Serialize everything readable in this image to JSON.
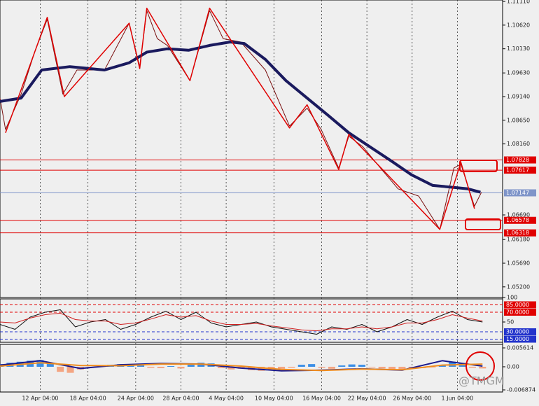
{
  "watermark": "@TMGM",
  "chart_data": [
    {
      "type": "line",
      "xlim": [
        0,
        100
      ],
      "xticks": [
        {
          "value": 8,
          "label": "12 Apr 04:00"
        },
        {
          "value": 17.5,
          "label": "18 Apr 04:00"
        },
        {
          "value": 27,
          "label": "24 Apr 04:00"
        },
        {
          "value": 36,
          "label": "28 Apr 04:00"
        },
        {
          "value": 45,
          "label": "4 May 04:00"
        },
        {
          "value": 54.5,
          "label": "10 May 04:00"
        },
        {
          "value": 64,
          "label": "16 May 04:00"
        },
        {
          "value": 73,
          "label": "22 May 04:00"
        },
        {
          "value": 82,
          "label": "26 May 04:00"
        },
        {
          "value": 91,
          "label": "1 Jun 04:00"
        }
      ],
      "ylim": [
        1.0498,
        1.1114
      ],
      "yticks": [
        {
          "value": 1.1111,
          "label": "1.11110"
        },
        {
          "value": 1.1062,
          "label": "1.10620"
        },
        {
          "value": 1.1013,
          "label": "1.10130"
        },
        {
          "value": 1.0963,
          "label": "1.09630"
        },
        {
          "value": 1.0914,
          "label": "1.09140"
        },
        {
          "value": 1.0865,
          "label": "1.08650"
        },
        {
          "value": 1.0816,
          "label": "1.08160"
        },
        {
          "value": 1.0669,
          "label": "1.06690"
        },
        {
          "value": 1.0618,
          "label": "1.06180"
        },
        {
          "value": 1.0569,
          "label": "1.05690"
        },
        {
          "value": 1.052,
          "label": "1.05200"
        }
      ],
      "levels": [
        {
          "value": 1.07828,
          "color": "#e00000"
        },
        {
          "value": 1.07617,
          "color": "#e00000"
        },
        {
          "value": 1.07147,
          "color": "#7f95c9"
        },
        {
          "value": 1.06578,
          "color": "#e00000"
        },
        {
          "value": 1.06318,
          "color": "#e00000"
        }
      ],
      "series": [
        {
          "color": "#7a1010",
          "width": 1,
          "x": [
            0,
            1.1,
            4.2,
            6.9,
            9.4,
            12.5,
            15.3,
            20.8,
            25.7,
            27.8,
            29.2,
            31.3,
            33.3,
            37.8,
            41.7,
            44.4,
            47.9,
            52.8,
            57.6,
            61.1,
            63.9,
            67.4,
            69.4,
            72.2,
            75.7,
            79.2,
            83.3,
            87.5,
            90.3,
            91.7,
            94.4,
            95.8
          ],
          "values": [
            1.0911,
            1.0846,
            1.0919,
            1.1006,
            1.1074,
            1.0919,
            1.0969,
            1.0969,
            1.1066,
            1.0976,
            1.1092,
            1.1034,
            1.102,
            1.0947,
            1.1092,
            1.1034,
            1.1027,
            1.0969,
            1.0853,
            1.089,
            1.0846,
            1.0766,
            1.0832,
            1.081,
            1.0766,
            1.0723,
            1.0708,
            1.0639,
            1.0766,
            1.0774,
            1.0687,
            1.0716
          ]
        },
        {
          "color": "#1a1a5e",
          "width": 4,
          "x": [
            0,
            4.2,
            8.3,
            13.9,
            20.8,
            25.7,
            29.2,
            33.3,
            37.5,
            41.7,
            45.8,
            48.6,
            52.8,
            56.9,
            61.1,
            65.3,
            69.4,
            73.6,
            77.8,
            81.9,
            86.1,
            90.3,
            93.1,
            95.6
          ],
          "values": [
            1.0904,
            1.0911,
            1.0969,
            1.0976,
            1.0969,
            1.0984,
            1.1006,
            1.1013,
            1.101,
            1.102,
            1.1027,
            1.1024,
            1.0991,
            1.0947,
            1.0911,
            1.0875,
            1.0839,
            1.081,
            1.0781,
            1.0752,
            1.073,
            1.0726,
            1.0723,
            1.0716
          ]
        },
        {
          "color": "#e00000",
          "width": 1.5,
          "x": [
            1.1,
            9.4,
            12.8,
            25.7,
            27.8,
            29.2,
            37.8,
            41.7,
            57.6,
            61.1,
            67.4,
            69.4,
            87.5,
            91.7,
            94.4
          ],
          "values": [
            1.0839,
            1.1078,
            1.0914,
            1.1066,
            1.0972,
            1.1097,
            1.0947,
            1.1097,
            1.0849,
            1.0897,
            1.0763,
            1.0836,
            1.0639,
            1.0778,
            1.0682
          ]
        }
      ]
    },
    {
      "type": "line",
      "xlim": [
        0,
        100
      ],
      "ylim": [
        0,
        100
      ],
      "yticks": [
        100,
        50
      ],
      "levels": [
        {
          "value": 85,
          "label": "85.0000",
          "color": "#e00000"
        },
        {
          "value": 70,
          "label": "70.0000",
          "color": "#e00000"
        },
        {
          "value": 30,
          "label": "30.0000",
          "color": "#2233cc"
        },
        {
          "value": 15,
          "label": "15.0000",
          "color": "#2233cc"
        }
      ],
      "series": [
        {
          "color": "#111111",
          "width": 1,
          "x": [
            0,
            3,
            6,
            9,
            12,
            15,
            18,
            21,
            24,
            27,
            30,
            33,
            36,
            39,
            42,
            45,
            48,
            51,
            54,
            57,
            60,
            63,
            66,
            69,
            72,
            75,
            78,
            81,
            84,
            87,
            90,
            93,
            96
          ],
          "values": [
            45,
            35,
            60,
            70,
            75,
            40,
            50,
            55,
            35,
            45,
            60,
            72,
            55,
            70,
            48,
            40,
            45,
            50,
            40,
            35,
            30,
            25,
            40,
            35,
            45,
            30,
            40,
            55,
            45,
            60,
            72,
            55,
            50
          ]
        },
        {
          "color": "#d02020",
          "width": 1,
          "x": [
            0,
            3,
            6,
            9,
            12,
            15,
            18,
            21,
            24,
            27,
            30,
            33,
            36,
            39,
            42,
            45,
            48,
            51,
            54,
            57,
            60,
            63,
            66,
            69,
            72,
            75,
            78,
            81,
            84,
            87,
            90,
            93,
            96
          ],
          "values": [
            50,
            48,
            58,
            65,
            68,
            55,
            52,
            52,
            45,
            48,
            56,
            65,
            60,
            63,
            52,
            45,
            45,
            47,
            42,
            38,
            34,
            32,
            36,
            36,
            40,
            36,
            40,
            48,
            48,
            55,
            65,
            58,
            52
          ]
        }
      ]
    },
    {
      "type": "bar",
      "xlim": [
        0,
        100
      ],
      "ylim": [
        -0.006874,
        0.005614
      ],
      "yticks": [
        {
          "value": 0.005614,
          "label": "0.005614"
        },
        {
          "value": 0,
          "label": "0.00"
        },
        {
          "value": -0.006874,
          "label": "-0.006874"
        }
      ],
      "pos_color": "#3a8ee6",
      "neg_color": "#f4a582",
      "x": [
        0,
        2,
        4,
        6,
        8,
        10,
        12,
        14,
        16,
        18,
        20,
        22,
        24,
        26,
        28,
        30,
        32,
        34,
        36,
        38,
        40,
        42,
        44,
        46,
        48,
        50,
        52,
        54,
        56,
        58,
        60,
        62,
        64,
        66,
        68,
        70,
        72,
        74,
        76,
        78,
        80,
        82,
        84,
        86,
        88,
        90,
        92,
        94,
        96
      ],
      "values": [
        0.0008,
        0.0012,
        0.0015,
        0.0018,
        0.002,
        0.001,
        -0.0015,
        -0.0018,
        -0.0008,
        -0.0003,
        0.0002,
        0.0006,
        0.0008,
        0.0004,
        0.0005,
        -0.0003,
        -0.0004,
        0.0002,
        -0.0005,
        0.0006,
        0.0012,
        0.001,
        -0.0004,
        -0.0008,
        -0.0006,
        -0.001,
        -0.0012,
        -0.0008,
        -0.0006,
        -0.0003,
        0.0006,
        0.0008,
        -0.0003,
        -0.0006,
        0.0004,
        0.0007,
        0.0006,
        -0.0002,
        -0.0005,
        -0.0007,
        -0.0008,
        -0.0006,
        -0.0004,
        -0.0002,
        0.0006,
        0.0015,
        0.001,
        -0.0003,
        -0.0005
      ],
      "series": [
        {
          "color": "#1a1a8e",
          "width": 2,
          "x": [
            0,
            8,
            16,
            24,
            32,
            40,
            48,
            56,
            64,
            72,
            80,
            88,
            96
          ],
          "values": [
            0.0005,
            0.0018,
            -0.0005,
            0.0006,
            0.001,
            0.0008,
            -0.0004,
            -0.0012,
            -0.001,
            -0.0006,
            -0.001,
            0.0018,
            0.0002
          ]
        },
        {
          "color": "#f08c1e",
          "width": 2,
          "x": [
            0,
            8,
            16,
            24,
            32,
            40,
            48,
            56,
            64,
            72,
            80,
            88,
            96
          ],
          "values": [
            0.0002,
            0.0012,
            0.0004,
            0.0003,
            0.0008,
            0.0008,
            0.0002,
            -0.0008,
            -0.0011,
            -0.0007,
            -0.0009,
            0.0005,
            0.0008
          ]
        }
      ]
    }
  ]
}
